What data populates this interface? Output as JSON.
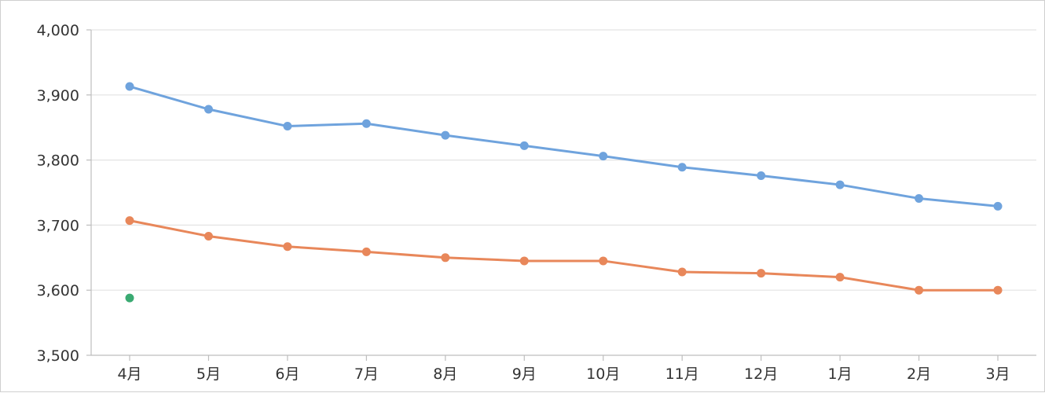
{
  "chart_data": {
    "type": "line",
    "categories": [
      "4月",
      "5月",
      "6月",
      "7月",
      "8月",
      "9月",
      "10月",
      "11月",
      "12月",
      "1月",
      "2月",
      "3月"
    ],
    "series": [
      {
        "color": "#6fa3dd",
        "values": [
          3913,
          3878,
          3852,
          3856,
          3838,
          3822,
          3806,
          3789,
          3776,
          3762,
          3741,
          3729
        ]
      },
      {
        "color": "#e8875a",
        "values": [
          3707,
          3683,
          3667,
          3659,
          3650,
          3645,
          3645,
          3628,
          3626,
          3620,
          3600,
          3600
        ]
      },
      {
        "color": "#3aaa72",
        "values": [
          3588,
          null,
          null,
          null,
          null,
          null,
          null,
          null,
          null,
          null,
          null,
          null
        ]
      }
    ],
    "ylim": [
      3500,
      4000
    ],
    "yticks": [
      3500,
      3600,
      3700,
      3800,
      3900,
      4000
    ],
    "ytick_labels": [
      "3,500",
      "3,600",
      "3,700",
      "3,800",
      "3,900",
      "4,000"
    ],
    "grid": true,
    "legend": "none",
    "gridline_color": "#e3e3e3",
    "axis_color": "#bdbdbd"
  }
}
